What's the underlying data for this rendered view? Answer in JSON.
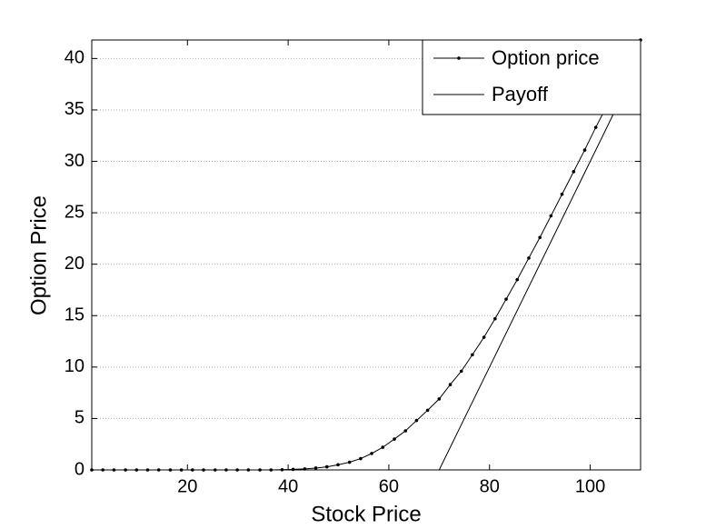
{
  "chart_data": {
    "type": "line",
    "xlabel": "Stock Price",
    "ylabel": "Option Price",
    "xlim": [
      1,
      110
    ],
    "ylim": [
      0,
      41.8
    ],
    "xticks": [
      20,
      40,
      60,
      80,
      100
    ],
    "yticks": [
      0,
      5,
      10,
      15,
      20,
      25,
      30,
      35,
      40
    ],
    "grid": "y",
    "legend": "upper right",
    "series": [
      {
        "name": "Option price",
        "color": "#000000",
        "marker": "dot",
        "x": [
          1,
          3.2,
          5.4,
          7.7,
          9.9,
          12.1,
          14.3,
          16.6,
          18.8,
          21,
          23.2,
          25.5,
          27.7,
          29.9,
          32.1,
          34.4,
          36.6,
          38.8,
          41,
          43.3,
          45.5,
          47.7,
          49.9,
          52.2,
          54.4,
          56.6,
          58.8,
          61.1,
          63.3,
          65.5,
          67.7,
          70,
          72.2,
          74.4,
          76.6,
          78.9,
          81.1,
          83.3,
          85.5,
          87.8,
          90,
          92.2,
          94.4,
          96.7,
          98.9,
          101.1,
          103.3,
          105.5,
          107.8,
          110
        ],
        "values": [
          0,
          0,
          0,
          0,
          0,
          0,
          0,
          0,
          0,
          0,
          0,
          0,
          0,
          0,
          0,
          0,
          0,
          0.02,
          0.05,
          0.1,
          0.18,
          0.3,
          0.5,
          0.75,
          1.1,
          1.6,
          2.2,
          3,
          3.8,
          4.8,
          5.8,
          6.9,
          8.3,
          9.6,
          11.2,
          12.9,
          14.7,
          16.6,
          18.5,
          20.6,
          22.6,
          24.7,
          26.8,
          29,
          31.1,
          33.3,
          35.4,
          37.6,
          39.8,
          41.8
        ]
      },
      {
        "name": "Payoff",
        "color": "#000000",
        "marker": "none",
        "x": [
          1,
          70,
          110
        ],
        "values": [
          0,
          0,
          40
        ]
      }
    ]
  }
}
